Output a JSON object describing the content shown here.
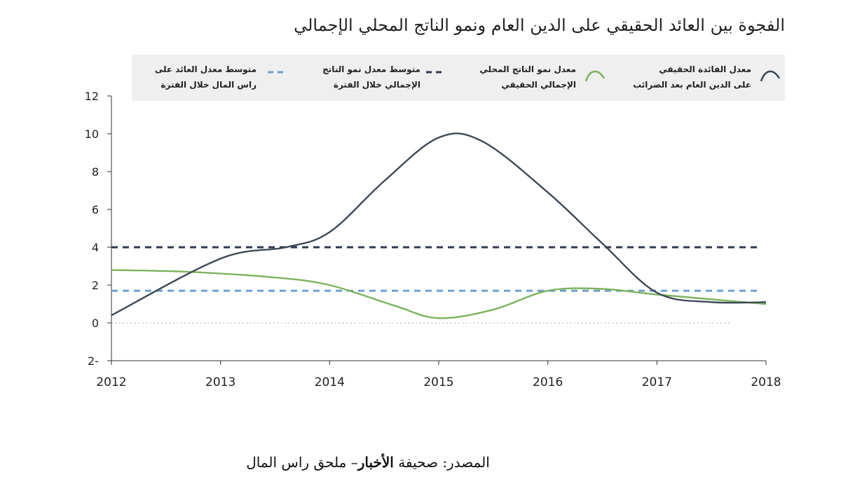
{
  "chart_data": {
    "type": "line",
    "title": "الفجوة بين العائد الحقيقي على الدين العام ونمو الناتج المحلي الإجمالي",
    "x": [
      2012,
      2013,
      2014,
      2015,
      2016,
      2017,
      2018
    ],
    "xlim": [
      2012,
      2018
    ],
    "ylim": [
      -2,
      12
    ],
    "yticks": [
      12,
      10,
      8,
      6,
      4,
      2,
      0,
      -2
    ],
    "ytick_labels": [
      "12",
      "10",
      "8",
      "6",
      "4",
      "2",
      "0",
      "2-"
    ],
    "xtick_labels": [
      "2012",
      "2013",
      "2014",
      "2015",
      "2016",
      "2017",
      "2018"
    ],
    "zero_line": true,
    "grid": false,
    "legend_position": "top",
    "series": [
      {
        "name": "معدل الفائدة الحقيقي على الدين العام بعد الضرائب",
        "name_lines": [
          "معدل الفائدة الحقيقي",
          "على الدين العام بعد الضرائب"
        ],
        "style": "solid",
        "color": "#3d4a56",
        "points": [
          [
            2012,
            0.4
          ],
          [
            2013,
            3.4
          ],
          [
            2013.6,
            4.0
          ],
          [
            2014,
            4.8
          ],
          [
            2014.5,
            7.5
          ],
          [
            2015,
            9.8
          ],
          [
            2015.4,
            9.6
          ],
          [
            2016,
            6.9
          ],
          [
            2016.5,
            4.2
          ],
          [
            2017,
            1.6
          ],
          [
            2017.5,
            1.1
          ],
          [
            2018,
            1.1
          ]
        ]
      },
      {
        "name": "معدل نمو الناتج المحلي الإجمالي الحقيقي",
        "name_lines": [
          "معدل نمو الناتج المحلي",
          "الإجمالي الحقيقي"
        ],
        "style": "solid",
        "color": "#7bb35c",
        "points": [
          [
            2012,
            2.8
          ],
          [
            2012.7,
            2.7
          ],
          [
            2013.5,
            2.4
          ],
          [
            2014,
            2.0
          ],
          [
            2014.6,
            0.9
          ],
          [
            2015,
            0.25
          ],
          [
            2015.5,
            0.7
          ],
          [
            2016,
            1.7
          ],
          [
            2016.5,
            1.8
          ],
          [
            2017,
            1.5
          ],
          [
            2018,
            1.0
          ]
        ]
      },
      {
        "name": "متوسط معدل نمو الناتج الإجمالي خلال الفترة",
        "name_lines": [
          "متوسط معدل نمو الناتج",
          "الإجمالي خلال الفترة"
        ],
        "style": "dashed",
        "color": "#2e3a52",
        "points": [
          [
            2012,
            4.0
          ],
          [
            2018,
            4.0
          ]
        ]
      },
      {
        "name": "متوسط معدل العائد على راس المال خلال الفترة",
        "name_lines": [
          "متوسط معدل العائد على",
          "راس المال خلال الفترة"
        ],
        "style": "dashed",
        "color": "#6f9fd1",
        "points": [
          [
            2012,
            1.7
          ],
          [
            2018,
            1.7
          ]
        ]
      }
    ]
  },
  "source": {
    "prefix": "المصدر: صحيفة",
    "publication": "الأخبار",
    "suffix": "– ملحق راس المال"
  },
  "colors": {
    "axis": "#333333",
    "zero_line": "#aaaaaa",
    "legend_bg": "#efefef"
  }
}
